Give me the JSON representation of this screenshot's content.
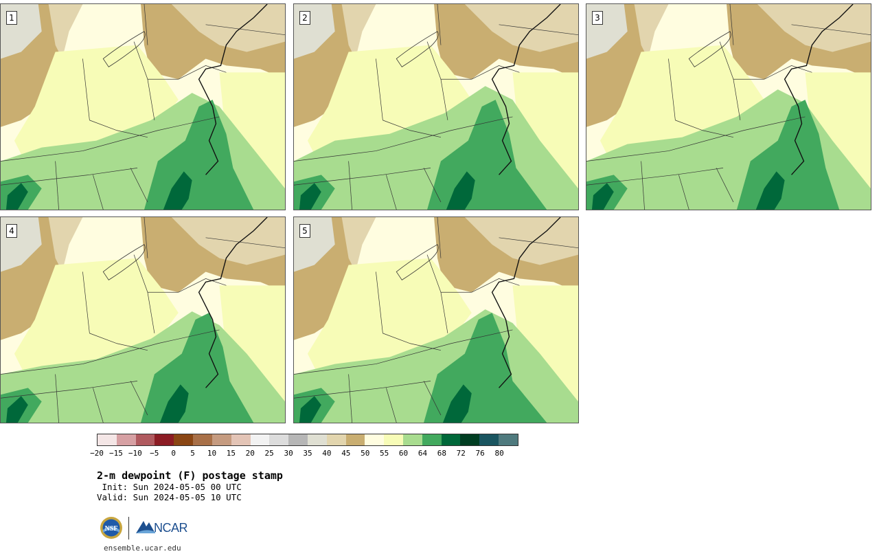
{
  "panels": [
    {
      "label": "1"
    },
    {
      "label": "2"
    },
    {
      "label": "3"
    },
    {
      "label": "4"
    },
    {
      "label": "5"
    }
  ],
  "colorbar": {
    "colors": [
      "#f4e6e6",
      "#d6a0a3",
      "#b05a5f",
      "#8c1c24",
      "#8a4614",
      "#a87048",
      "#c59b80",
      "#e3c4b6",
      "#f2f2f2",
      "#dcdcdc",
      "#b6b6b6",
      "#dfdfd2",
      "#e2d5ae",
      "#c9ae71",
      "#fffde0",
      "#f7fcb7",
      "#a8dc8f",
      "#42a95e",
      "#00683a",
      "#003e22",
      "#1a5560",
      "#4f7a7e"
    ],
    "labels": [
      "−20",
      "−15",
      "−10",
      "−5",
      "0",
      "5",
      "10",
      "15",
      "20",
      "25",
      "30",
      "35",
      "40",
      "45",
      "50",
      "55",
      "60",
      "64",
      "68",
      "72",
      "76",
      "80"
    ]
  },
  "title": "2-m dewpoint (F) postage stamp",
  "init": " Init: Sun 2024-05-05 00 UTC",
  "valid": "Valid: Sun 2024-05-05 10 UTC",
  "logos": {
    "ncar": "NCAR"
  },
  "site": "ensemble.ucar.edu"
}
